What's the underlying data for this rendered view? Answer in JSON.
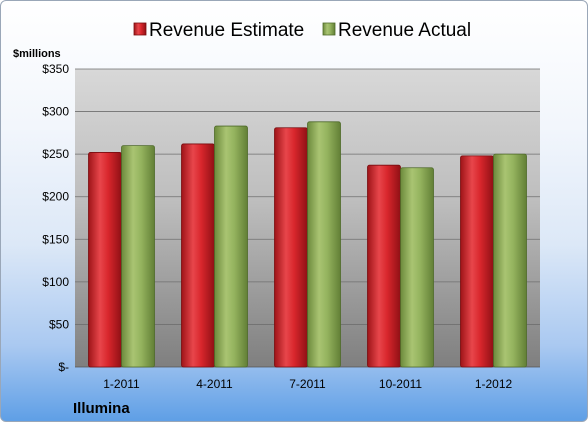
{
  "chart_data": {
    "type": "bar",
    "title": "",
    "company": "Illumina",
    "ylabel": "$millions",
    "xlabel": "",
    "categories": [
      "1-2011",
      "4-2011",
      "7-2011",
      "10-2011",
      "1-2012"
    ],
    "series": [
      {
        "name": "Revenue Estimate",
        "values": [
          252,
          262,
          281,
          237,
          248
        ],
        "color": "#cc1f26"
      },
      {
        "name": "Revenue Actual",
        "values": [
          260,
          283,
          288,
          234,
          250
        ],
        "color": "#8caa55"
      }
    ],
    "ylim": [
      0,
      350
    ],
    "yticks": [
      0,
      50,
      100,
      150,
      200,
      250,
      300,
      350
    ],
    "ytick_labels": [
      "$-",
      "$50",
      "$100",
      "$150",
      "$200",
      "$250",
      "$300",
      "$350"
    ],
    "grid": true,
    "legend_position": "top"
  }
}
